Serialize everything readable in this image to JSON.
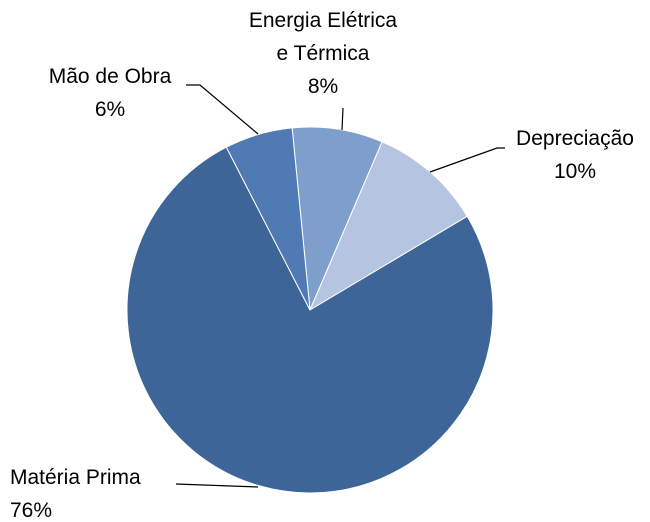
{
  "chart_data": {
    "type": "pie",
    "categories": [
      "Energia Elétrica e Térmica",
      "Depreciação",
      "Matéria Prima",
      "Mão de Obra"
    ],
    "values": [
      8,
      10,
      76,
      6
    ],
    "value_labels": [
      "8%",
      "10%",
      "76%",
      "6%"
    ],
    "colors": [
      "#7e9ecc",
      "#b5c5e1",
      "#3d6597",
      "#4f7ab4"
    ]
  }
}
